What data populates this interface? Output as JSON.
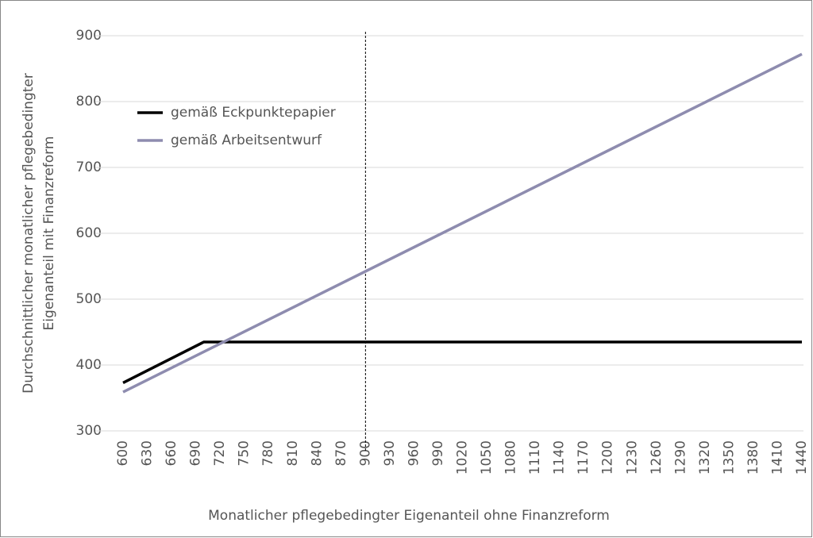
{
  "chart_data": {
    "type": "line",
    "x_label": "Monatlicher pflegebedingter Eigenanteil ohne Finanzreform",
    "y_label": [
      "Durchschnittlicher monatlicher pflegebedingter",
      "Eigenanteil mit Finanzreform"
    ],
    "xlim": [
      600,
      1440
    ],
    "xticks": [
      600,
      630,
      660,
      690,
      720,
      750,
      780,
      810,
      840,
      870,
      900,
      930,
      960,
      990,
      1020,
      1050,
      1080,
      1110,
      1140,
      1170,
      1200,
      1230,
      1260,
      1290,
      1320,
      1350,
      1380,
      1410,
      1440
    ],
    "ylim": [
      300,
      900
    ],
    "yticks": [
      300,
      400,
      500,
      600,
      700,
      800,
      900
    ],
    "grid": true,
    "vline": 900,
    "legend": "upper-left",
    "series": [
      {
        "name": "gemäß Eckpunktepapier",
        "color": "#000000",
        "x": [
          600,
          700,
          1440
        ],
        "values": [
          373,
          435,
          435
        ]
      },
      {
        "name": "gemäß Arbeitsentwurf",
        "color": "#8e8caf",
        "x": [
          600,
          1440
        ],
        "values": [
          359,
          872
        ]
      }
    ]
  }
}
